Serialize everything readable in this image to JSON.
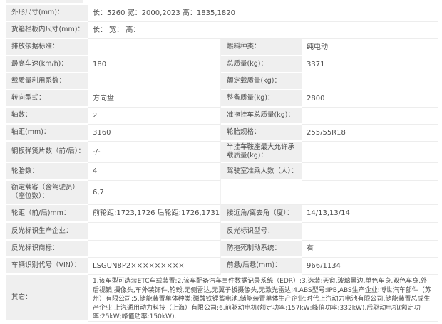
{
  "colors": {
    "label_bg": "#efefef",
    "border": "#ededed",
    "text": "#4d4d4d",
    "background": "#ffffff"
  },
  "full_rows": [
    {
      "label": "外形尺寸(mm)：",
      "value": "长：5260 宽：2000,2023 高：1835,1820"
    },
    {
      "label": "货箱栏板内尺寸(mm)：",
      "value": "长： 宽： 高："
    }
  ],
  "paired_rows": [
    {
      "l_label": "排放依据标准：",
      "l_value": "",
      "r_label": "燃料种类：",
      "r_value": "纯电动"
    },
    {
      "l_label": "最高车速(km/h)：",
      "l_value": "180",
      "r_label": "总质量(kg)：",
      "r_value": "3371"
    },
    {
      "l_label": "载质量利用系数：",
      "l_value": "",
      "r_label": "额定载质量(kg)：",
      "r_value": ""
    },
    {
      "l_label": "转向型式：",
      "l_value": "方向盘",
      "r_label": "整备质量(kg)：",
      "r_value": "2800"
    },
    {
      "l_label": "轴数：",
      "l_value": "2",
      "r_label": "准拖挂车总质量(kg)：",
      "r_value": ""
    },
    {
      "l_label": "轴距(mm)：",
      "l_value": "3160",
      "r_label": "轮胎规格：",
      "r_value": "255/55R18"
    },
    {
      "l_label": "钢板弹簧片数（前/后）：",
      "l_value": "-/-",
      "r_label": "半挂车鞍座最大允许承载质量(kg)：",
      "r_value": ""
    },
    {
      "l_label": "轮胎数：",
      "l_value": "4",
      "r_label": "驾驶室准乘人数（人）：",
      "r_value": ""
    },
    {
      "l_label": "额定载客（含驾驶员）（座位数）：",
      "l_value": "6,7"
    },
    {
      "l_label": "轮距（前/后)mm：",
      "l_value": "前轮距:1723,1726 后轮距:1726,1731",
      "r_label": "接近角/离去角（度）：",
      "r_value": "14/13,13/14"
    },
    {
      "l_label": "反光标识生产企业：",
      "l_value": "",
      "r_label": "反光标识型号：",
      "r_value": ""
    },
    {
      "l_label": "反光标识商标：",
      "l_value": "",
      "r_label": "防抱死制动系统：",
      "r_value": "有"
    },
    {
      "l_label": "车辆识别代号（VIN）：",
      "l_value": "LSGUN8P2×××××××××",
      "r_label": "前悬/后悬(mm)：",
      "r_value": "966/1134"
    }
  ],
  "other_row": {
    "label": "其它：",
    "value": "1.该车型可选装ETC车载装置;2.该车配备汽车事件数据记录系统（EDR）;3.选装:天窗,玻璃黑边,单色车身,双色车身,外后视镜,摄像头,车外装饰件,轮毂,无侧雷达,无翼子板摄像头,无激光雷达;4.ABS型号:IPB,ABS生产企业:博世汽车部件（苏州）有限公司;5.储能装置单体种类:磷酸铁锂蓄电池,储能装置单体生产企业:时代上汽动力电池有限公司,储能装置总成生产企业:上汽通用动力科技（上海）有限公司;6.前驱动电机(额定功率:157kW;峰值功率:332kW),后驱动电机(额定功率:25kW;峰值功率:150kW)."
  }
}
